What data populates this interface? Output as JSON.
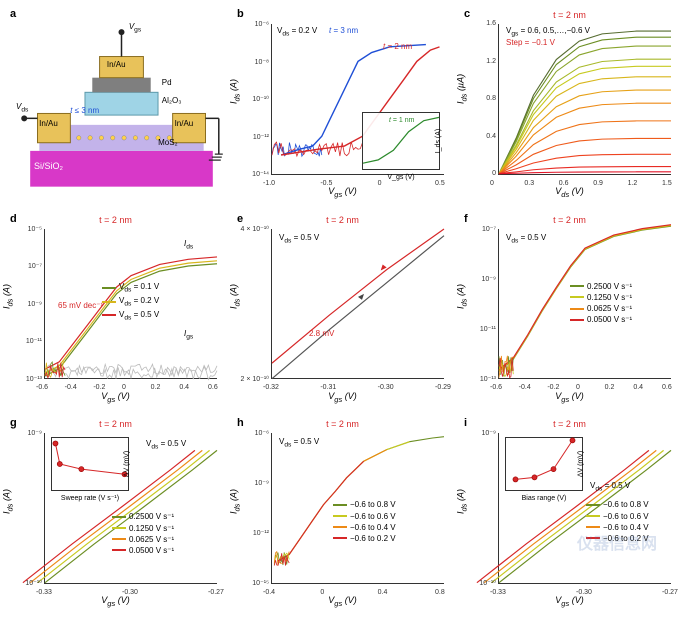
{
  "panels": {
    "a": {
      "label": "a",
      "type": "infographic",
      "labels": {
        "vgs": "V_gs",
        "vds": "V_ds",
        "top_metal": "In/Au",
        "left_metal": "In/Au",
        "right_metal": "In/Au",
        "gate_metal": "Pd",
        "dielectric": "Al₂O₃",
        "thickness": "t ≤ 3 nm",
        "channel": "MoS₂",
        "substrate": "Si/SiO₂"
      },
      "colors": {
        "substrate": "#d838c8",
        "channel_bg": "#b9a6e6",
        "metal": "#e8c25a",
        "dielectric": "#9fd4e6",
        "gate": "#7f7f7f",
        "lead": "#222222"
      }
    },
    "b": {
      "label": "b",
      "type": "line",
      "title": "",
      "xlabel": "V_gs (V)",
      "ylabel": "I_ds (A)",
      "xlim": [
        -1.2,
        0.7
      ],
      "ylim_log": [
        1e-14,
        1e-06
      ],
      "xticks": [
        "-1.0",
        "-0.5",
        "0",
        "0.5"
      ],
      "yticks": [
        "10⁻¹⁴",
        "10⁻¹²",
        "10⁻¹⁰",
        "10⁻⁸",
        "10⁻⁶"
      ],
      "annotations": {
        "vds": "V_ds = 0.2 V",
        "t3": "t = 3 nm",
        "t3_color": "#1f4fd6",
        "t2": "t = 2 nm",
        "t2_color": "#d62728",
        "t1": "t = 1 nm",
        "t1_color": "#2c8a2c"
      },
      "series": [
        {
          "color": "#1f4fd6",
          "width": 1.4,
          "points": [
            [
              -1.1,
              1e-13
            ],
            [
              -0.9,
              2e-13
            ],
            [
              -0.75,
              3e-13
            ],
            [
              -0.65,
              1e-12
            ],
            [
              -0.55,
              1e-11
            ],
            [
              -0.45,
              1e-10
            ],
            [
              -0.35,
              1e-09
            ],
            [
              -0.25,
              1e-08
            ],
            [
              -0.1,
              3e-08
            ],
            [
              0.1,
              6e-08
            ],
            [
              0.5,
              8e-08
            ]
          ]
        },
        {
          "color": "#d62728",
          "width": 1.4,
          "points": [
            [
              -1.1,
              1e-13
            ],
            [
              -0.7,
              2e-13
            ],
            [
              -0.4,
              3e-13
            ],
            [
              -0.2,
              1e-12
            ],
            [
              -0.05,
              1e-11
            ],
            [
              0.1,
              1e-10
            ],
            [
              0.25,
              1e-09
            ],
            [
              0.4,
              1e-08
            ],
            [
              0.55,
              4e-08
            ],
            [
              0.65,
              6e-08
            ]
          ]
        }
      ],
      "inset": {
        "xlabel": "V_gs (V)",
        "ylabel": "I_ds (A)",
        "xlim": [
          -0.5,
          0.5
        ],
        "ylim_log": [
          1e-10,
          1e-07
        ],
        "series": [
          {
            "color": "#2c8a2c",
            "width": 1.2,
            "points": [
              [
                -0.5,
                2e-10
              ],
              [
                -0.3,
                3e-10
              ],
              [
                -0.1,
                1e-09
              ],
              [
                0.1,
                1e-08
              ],
              [
                0.3,
                4e-08
              ],
              [
                0.5,
                6e-08
              ]
            ]
          }
        ]
      }
    },
    "c": {
      "label": "c",
      "type": "line",
      "title": "t = 2 nm",
      "xlabel": "V_ds (V)",
      "ylabel": "I_ds (µA)",
      "xlim": [
        0,
        1.5
      ],
      "ylim": [
        0,
        1.7
      ],
      "xticks": [
        "0",
        "0.3",
        "0.6",
        "0.9",
        "1.2",
        "1.5"
      ],
      "yticks": [
        "0",
        "0.4",
        "0.8",
        "1.2",
        "1.6"
      ],
      "annotations": {
        "range": "V_gs = 0.6, 0.5,…,−0.6 V",
        "step": "Step = −0.1 V",
        "step_color": "#d62728"
      },
      "colors_gradient": [
        "#556b2f",
        "#6b8e23",
        "#8aa52d",
        "#a8b92a",
        "#c7ca20",
        "#d8b61c",
        "#e6a117",
        "#ed8a16",
        "#ef7318",
        "#ef5b1b",
        "#ee4320",
        "#e82b24",
        "#e11428"
      ],
      "top_values_at_xmax": [
        1.62,
        1.55,
        1.45,
        1.3,
        1.22,
        1.1,
        0.95,
        0.8,
        0.6,
        0.4,
        0.22,
        0.08,
        0.02
      ]
    },
    "d": {
      "label": "d",
      "type": "line",
      "title": "t = 2 nm",
      "xlabel": "V_gs (V)",
      "ylabel": "I_ds (A)",
      "xlim": [
        -0.6,
        0.6
      ],
      "ylim_log": [
        1e-13,
        1e-05
      ],
      "xticks": [
        "-0.6",
        "-0.4",
        "-0.2",
        "0",
        "0.2",
        "0.4",
        "0.6"
      ],
      "yticks": [
        "10⁻¹³",
        "10⁻¹¹",
        "10⁻⁹",
        "10⁻⁷",
        "10⁻⁵"
      ],
      "annotations": {
        "ids_arrow": "I_ds",
        "igs_arrow": "I_gs",
        "ss": "65 mV dec⁻¹",
        "ss_color": "#d62728"
      },
      "legend": [
        {
          "label": "V_ds = 0.1 V",
          "color": "#6b8e23"
        },
        {
          "label": "V_ds = 0.2 V",
          "color": "#d8b61c"
        },
        {
          "label": "V_ds = 0.5 V",
          "color": "#d62728"
        }
      ],
      "grey_color": "#bbbbbb",
      "ids_series": [
        {
          "color": "#6b8e23",
          "scale": 0.7
        },
        {
          "color": "#d8b61c",
          "scale": 1.0
        },
        {
          "color": "#d62728",
          "scale": 1.6
        }
      ],
      "template_points": [
        [
          -0.6,
          2e-13
        ],
        [
          -0.5,
          5e-13
        ],
        [
          -0.4,
          5e-12
        ],
        [
          -0.3,
          5e-11
        ],
        [
          -0.2,
          5e-10
        ],
        [
          -0.1,
          5e-09
        ],
        [
          0.0,
          2e-08
        ],
        [
          0.2,
          8e-08
        ],
        [
          0.4,
          1.5e-07
        ],
        [
          0.6,
          2e-07
        ]
      ]
    },
    "e": {
      "label": "e",
      "type": "line",
      "title": "t = 2 nm",
      "xlabel": "V_gs (V)",
      "ylabel": "I_ds (A)",
      "xlim": [
        -0.32,
        -0.29
      ],
      "ylim_log": [
        2e-10,
        5e-10
      ],
      "xticks": [
        "-0.32",
        "-0.31",
        "-0.30",
        "-0.29"
      ],
      "yticks": [
        "2 × 10⁻¹⁰",
        "4 × 10⁻¹⁰"
      ],
      "annotations": {
        "vds": "V_ds = 0.5 V",
        "hyst": "2.8 mV",
        "hyst_color": "#d62728"
      },
      "series": [
        {
          "color": "#555555",
          "width": 1.2,
          "points": [
            [
              -0.32,
              2e-10
            ],
            [
              -0.31,
              2.7e-10
            ],
            [
              -0.3,
              3.6e-10
            ],
            [
              -0.29,
              4.8e-10
            ]
          ]
        },
        {
          "color": "#d62728",
          "width": 1.2,
          "points": [
            [
              -0.32,
              2.2e-10
            ],
            [
              -0.31,
              2.95e-10
            ],
            [
              -0.3,
              3.9e-10
            ],
            [
              -0.29,
              5e-10
            ]
          ]
        }
      ]
    },
    "f": {
      "label": "f",
      "type": "line",
      "title": "t = 2 nm",
      "xlabel": "V_gs (V)",
      "ylabel": "I_ds (A)",
      "xlim": [
        -0.6,
        0.6
      ],
      "ylim_log": [
        1e-13,
        1e-07
      ],
      "xticks": [
        "-0.6",
        "-0.4",
        "-0.2",
        "0",
        "0.2",
        "0.4",
        "0.6"
      ],
      "yticks": [
        "10⁻¹³",
        "10⁻¹¹",
        "10⁻⁹",
        "10⁻⁷"
      ],
      "annotations": {
        "vds": "V_ds = 0.5 V"
      },
      "legend": [
        {
          "label": "0.2500 V s⁻¹",
          "color": "#6b8e23"
        },
        {
          "label": "0.1250 V s⁻¹",
          "color": "#c7ca20"
        },
        {
          "label": "0.0625 V s⁻¹",
          "color": "#ed8a16"
        },
        {
          "label": "0.0500 V s⁻¹",
          "color": "#d62728"
        }
      ],
      "template_points": [
        [
          -0.6,
          2e-13
        ],
        [
          -0.5,
          6e-13
        ],
        [
          -0.4,
          5e-12
        ],
        [
          -0.3,
          5e-11
        ],
        [
          -0.2,
          4e-10
        ],
        [
          -0.1,
          3e-09
        ],
        [
          0.0,
          1.5e-08
        ],
        [
          0.2,
          5e-08
        ],
        [
          0.4,
          9e-08
        ],
        [
          0.6,
          1.3e-07
        ]
      ]
    },
    "g": {
      "label": "g",
      "type": "line",
      "title": "t = 2 nm",
      "xlabel": "V_gs (V)",
      "ylabel": "I_ds (A)",
      "xlim": [
        -0.34,
        -0.27
      ],
      "ylim_log": [
        1e-10,
        1.2e-09
      ],
      "xticks": [
        "-0.33",
        "-0.30",
        "-0.27"
      ],
      "yticks": [
        "10⁻¹⁰",
        "10⁻⁹"
      ],
      "annotations": {
        "vds": "V_ds = 0.5 V"
      },
      "legend": [
        {
          "label": "0.2500 V s⁻¹",
          "color": "#6b8e23"
        },
        {
          "label": "0.1250 V s⁻¹",
          "color": "#c7ca20"
        },
        {
          "label": "0.0625 V s⁻¹",
          "color": "#ed8a16"
        },
        {
          "label": "0.0500 V s⁻¹",
          "color": "#d62728"
        }
      ],
      "series_offsets": [
        0.0,
        -0.003,
        -0.006,
        -0.009
      ],
      "base_points": [
        [
          -0.34,
          1e-10
        ],
        [
          -0.32,
          1.9e-10
        ],
        [
          -0.3,
          3.5e-10
        ],
        [
          -0.28,
          6.5e-10
        ],
        [
          -0.27,
          9e-10
        ]
      ],
      "inset": {
        "xlabel": "Sweep rate (V s⁻¹)",
        "ylabel": "ΔV (mV)",
        "xlim": [
          0.04,
          0.26
        ],
        "ylim": [
          0,
          10
        ],
        "marker_color": "#d62728",
        "points": [
          [
            0.05,
            9
          ],
          [
            0.0625,
            5
          ],
          [
            0.125,
            4
          ],
          [
            0.25,
            3
          ]
        ]
      }
    },
    "h": {
      "label": "h",
      "type": "line",
      "title": "t = 2 nm",
      "xlabel": "V_gs (V)",
      "ylabel": "I_ds (A)",
      "xlim": [
        -0.7,
        0.8
      ],
      "ylim_log": [
        1e-15,
        1e-06
      ],
      "xticks": [
        "-0.4",
        "0",
        "0.4",
        "0.8"
      ],
      "yticks": [
        "10⁻¹⁵",
        "10⁻¹²",
        "10⁻⁹",
        "10⁻⁶"
      ],
      "annotations": {
        "vds": "V_ds = 0.5 V"
      },
      "legend": [
        {
          "label": "−0.6  to 0.8 V",
          "color": "#6b8e23"
        },
        {
          "label": "−0.6  to 0.6 V",
          "color": "#c7ca20"
        },
        {
          "label": "−0.6  to 0.4 V",
          "color": "#ed8a16"
        },
        {
          "label": "−0.6  to 0.2 V",
          "color": "#d62728"
        }
      ],
      "series": [
        {
          "color": "#6b8e23",
          "xmax": 0.8
        },
        {
          "color": "#c7ca20",
          "xmax": 0.6
        },
        {
          "color": "#ed8a16",
          "xmax": 0.4
        },
        {
          "color": "#d62728",
          "xmax": 0.2
        }
      ],
      "template_points": [
        [
          -0.65,
          2e-14
        ],
        [
          -0.55,
          5e-14
        ],
        [
          -0.45,
          5e-13
        ],
        [
          -0.35,
          5e-12
        ],
        [
          -0.25,
          5e-11
        ],
        [
          -0.15,
          3e-10
        ],
        [
          -0.05,
          2e-09
        ],
        [
          0.1,
          2e-08
        ],
        [
          0.3,
          1e-07
        ],
        [
          0.5,
          3e-07
        ],
        [
          0.7,
          5e-07
        ],
        [
          0.8,
          6e-07
        ]
      ]
    },
    "i": {
      "label": "i",
      "type": "line",
      "title": "t = 2 nm",
      "xlabel": "V_gs (V)",
      "ylabel": "I_ds (A)",
      "xlim": [
        -0.34,
        -0.27
      ],
      "ylim_log": [
        1e-10,
        1.2e-09
      ],
      "xticks": [
        "-0.33",
        "-0.30",
        "-0.27"
      ],
      "yticks": [
        "10⁻¹⁰",
        "10⁻⁹"
      ],
      "annotations": {
        "vds": "V_ds = 0.5 V"
      },
      "legend": [
        {
          "label": "−0.6  to 0.8 V",
          "color": "#6b8e23"
        },
        {
          "label": "−0.6  to 0.6 V",
          "color": "#c7ca20"
        },
        {
          "label": "−0.6  to 0.4 V",
          "color": "#ed8a16"
        },
        {
          "label": "−0.6  to 0.2 V",
          "color": "#d62728"
        }
      ],
      "series_offsets": [
        0.0,
        -0.003,
        -0.006,
        -0.009
      ],
      "base_points": [
        [
          -0.34,
          1e-10
        ],
        [
          -0.32,
          1.9e-10
        ],
        [
          -0.3,
          3.5e-10
        ],
        [
          -0.28,
          6.5e-10
        ],
        [
          -0.27,
          9e-10
        ]
      ],
      "inset": {
        "xlabel": "Bias range (V)",
        "ylabel": "ΔV (mV)",
        "xlim": [
          0.7,
          1.5
        ],
        "ylim": [
          0,
          5
        ],
        "marker_color": "#d62728",
        "points": [
          [
            0.8,
            1.0
          ],
          [
            1.0,
            1.2
          ],
          [
            1.2,
            2.0
          ],
          [
            1.4,
            4.8
          ]
        ]
      }
    }
  },
  "watermark": "仪器信息网"
}
